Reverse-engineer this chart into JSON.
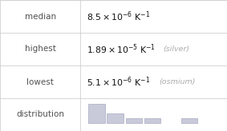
{
  "rows": [
    {
      "label": "median",
      "value_latex": "$8.5\\times10^{-6}$ $\\mathsf{K}^{-1}$",
      "note": ""
    },
    {
      "label": "highest",
      "value_latex": "$1.89\\times10^{-5}$ $\\mathsf{K}^{-1}$",
      "note": "(silver)"
    },
    {
      "label": "lowest",
      "value_latex": "$5.1\\times10^{-6}$ $\\mathsf{K}^{-1}$",
      "note": "(osmium)"
    },
    {
      "label": "distribution",
      "value_latex": "",
      "note": ""
    }
  ],
  "table_bg": "#ffffff",
  "border_color": "#d0d0d0",
  "label_color": "#505050",
  "value_color": "#111111",
  "note_color": "#aaaaaa",
  "hist_bar_color": "#c8cada",
  "hist_bar_edge_color": "#a8aac0",
  "hist_bar_heights": [
    4,
    2,
    1,
    1,
    0,
    1
  ],
  "col_split": 0.355,
  "label_fontsize": 7.5,
  "value_fontsize": 7.8,
  "note_fontsize": 6.8
}
